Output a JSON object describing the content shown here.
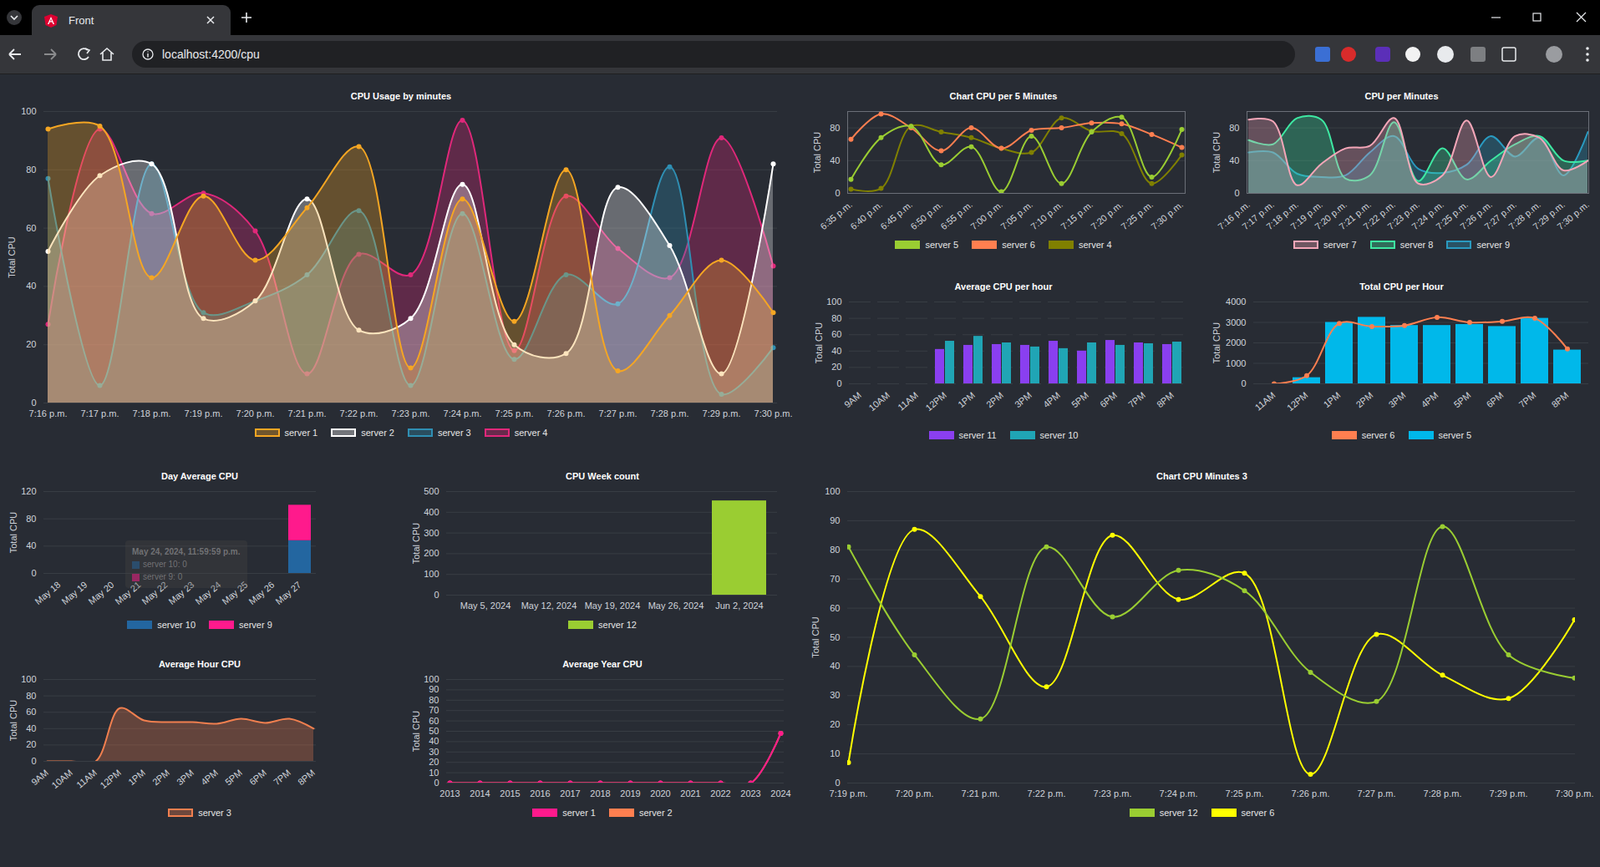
{
  "browser": {
    "tab_title": "Front",
    "url": "localhost:4200/cpu"
  },
  "chart_data": [
    {
      "type": "area",
      "title": "CPU Usage by minutes",
      "y_label": "Total CPU",
      "grid": true,
      "marker": "circle",
      "legend": "bottom",
      "categories": [
        "7:16 p.m.",
        "7:17 p.m.",
        "7:18 p.m.",
        "7:19 p.m.",
        "7:20 p.m.",
        "7:21 p.m.",
        "7:22 p.m.",
        "7:23 p.m.",
        "7:24 p.m.",
        "7:25 p.m.",
        "7:26 p.m.",
        "7:27 p.m.",
        "7:28 p.m.",
        "7:29 p.m.",
        "7:30 p.m."
      ],
      "ylim": [
        0,
        100
      ],
      "yticks": [
        0,
        20,
        40,
        60,
        80,
        100
      ],
      "series": [
        {
          "name": "server 1",
          "color": "#f5a623",
          "values": [
            94,
            95,
            43,
            71,
            49,
            67,
            88,
            12,
            70,
            28,
            80,
            11,
            30,
            49,
            31
          ]
        },
        {
          "name": "server 2",
          "color": "#ffffff",
          "values": [
            52,
            78,
            82,
            29,
            35,
            70,
            25,
            29,
            75,
            20,
            17,
            74,
            54,
            10,
            82
          ]
        },
        {
          "name": "server 3",
          "color": "#2f8fb3",
          "values": [
            77,
            6,
            82,
            31,
            35,
            44,
            66,
            6,
            65,
            15,
            44,
            34,
            81,
            3,
            19
          ]
        },
        {
          "name": "server 4",
          "color": "#e0287a",
          "values": [
            27,
            94,
            65,
            72,
            59,
            10,
            51,
            44,
            97,
            18,
            71,
            53,
            43,
            91,
            47
          ]
        }
      ]
    },
    {
      "type": "line",
      "title": "Chart CPU per 5 Minutes",
      "y_label": "Total CPU",
      "grid": true,
      "marker": "circle",
      "legend": "bottom",
      "categories": [
        "6:35 p.m.",
        "6:40 p.m.",
        "6:45 p.m.",
        "6:50 p.m.",
        "6:55 p.m.",
        "7:00 p.m.",
        "7:05 p.m.",
        "7:10 p.m.",
        "7:15 p.m.",
        "7:20 p.m.",
        "7:25 p.m.",
        "7:30 p.m."
      ],
      "ylim": [
        0,
        100
      ],
      "yticks": [
        0,
        40,
        80
      ],
      "series": [
        {
          "name": "server 5",
          "color": "#9acd32",
          "values": [
            17,
            68,
            82,
            35,
            57,
            2,
            70,
            12,
            75,
            93,
            20,
            78
          ]
        },
        {
          "name": "server 6",
          "color": "#ff7f50",
          "values": [
            66,
            97,
            80,
            52,
            80,
            55,
            77,
            80,
            86,
            85,
            72,
            56
          ]
        },
        {
          "name": "server 4",
          "color": "#808000",
          "values": [
            5,
            6,
            82,
            75,
            68,
            55,
            50,
            92,
            76,
            73,
            12,
            47
          ]
        }
      ]
    },
    {
      "type": "area",
      "title": "CPU per Minutes",
      "y_label": "Total CPU",
      "grid": true,
      "legend": "bottom",
      "categories": [
        "7:16 p.m.",
        "7:17 p.m.",
        "7:18 p.m.",
        "7:19 p.m.",
        "7:20 p.m.",
        "7:21 p.m.",
        "7:22 p.m.",
        "7:23 p.m.",
        "7:24 p.m.",
        "7:25 p.m.",
        "7:26 p.m.",
        "7:27 p.m.",
        "7:28 p.m.",
        "7:29 p.m.",
        "7:30 p.m."
      ],
      "ylim": [
        0,
        100
      ],
      "yticks": [
        0,
        40,
        80
      ],
      "series": [
        {
          "name": "server 7",
          "color": "#f4a6b8",
          "values": [
            90,
            88,
            10,
            36,
            55,
            58,
            92,
            12,
            22,
            89,
            20,
            70,
            68,
            28,
            40
          ]
        },
        {
          "name": "server 8",
          "color": "#3ee8a2",
          "values": [
            65,
            60,
            92,
            90,
            18,
            22,
            87,
            15,
            55,
            17,
            40,
            60,
            70,
            40,
            40
          ]
        },
        {
          "name": "server 9",
          "color": "#2a9ac0",
          "values": [
            50,
            50,
            24,
            20,
            22,
            50,
            70,
            30,
            25,
            35,
            70,
            45,
            68,
            22,
            75
          ]
        }
      ]
    },
    {
      "type": "bar",
      "title": "Average CPU per hour",
      "y_label": "Total CPU",
      "grid": true,
      "stacked": false,
      "legend": "bottom",
      "categories": [
        "9AM",
        "10AM",
        "11AM",
        "12PM",
        "1PM",
        "2PM",
        "3PM",
        "4PM",
        "5PM",
        "6PM",
        "7PM",
        "8PM"
      ],
      "ylim": [
        0,
        100
      ],
      "yticks": [
        0,
        20,
        40,
        60,
        80,
        100
      ],
      "series": [
        {
          "name": "server 11",
          "color": "#8a3ff0",
          "values": [
            0,
            0,
            0,
            42,
            47,
            48,
            47,
            52,
            40,
            53,
            50,
            48
          ]
        },
        {
          "name": "server 10",
          "color": "#20a5b5",
          "values": [
            0,
            0,
            0,
            52,
            58,
            50,
            45,
            43,
            50,
            47,
            49,
            51
          ]
        }
      ]
    },
    {
      "type": "bar",
      "title": "Total CPU per Hour",
      "y_label": "Total CPU",
      "grid": true,
      "legend": "bottom",
      "categories": [
        "11AM",
        "12PM",
        "1PM",
        "2PM",
        "3PM",
        "4PM",
        "5PM",
        "6PM",
        "7PM",
        "8PM"
      ],
      "ylim": [
        0,
        4000
      ],
      "yticks": [
        0,
        1000,
        2000,
        3000,
        4000
      ],
      "series": [
        {
          "name": "server 6",
          "color": "#ff7f50",
          "type": "line",
          "marker": "circle",
          "values": [
            0,
            400,
            2950,
            2800,
            2850,
            3250,
            3000,
            3050,
            3200,
            1700
          ]
        },
        {
          "name": "server 5",
          "color": "#00b8ea",
          "type": "bar",
          "values": [
            0,
            300,
            3000,
            3250,
            2850,
            2850,
            2900,
            2800,
            3200,
            1650
          ]
        }
      ]
    },
    {
      "type": "bar",
      "title": "Day Average CPU",
      "y_label": "Total CPU",
      "grid": true,
      "stacked": true,
      "legend": "bottom",
      "categories": [
        "May 18",
        "May 19",
        "May 20",
        "May 21",
        "May 22",
        "May 23",
        "May 24",
        "May 25",
        "May 26",
        "May 27"
      ],
      "ylim": [
        0,
        120
      ],
      "yticks": [
        0,
        40,
        80,
        120
      ],
      "series": [
        {
          "name": "server 10",
          "color": "#2366a0",
          "values": [
            0,
            0,
            0,
            0,
            0,
            0,
            0,
            0,
            0,
            48
          ]
        },
        {
          "name": "server 9",
          "color": "#ff1a8c",
          "values": [
            0,
            0,
            0,
            0,
            0,
            0,
            0,
            0,
            0,
            52
          ]
        }
      ],
      "tooltip": {
        "title": "May 24, 2024, 11:59:59 p.m.",
        "lines": [
          "server 10: 0",
          "server 9: 0"
        ]
      }
    },
    {
      "type": "bar",
      "title": "CPU Week count",
      "y_label": "Total CPU",
      "grid": true,
      "legend": "bottom",
      "categories": [
        "May 5, 2024",
        "May 12, 2024",
        "May 19, 2024",
        "May 26, 2024",
        "Jun 2, 2024"
      ],
      "ylim": [
        0,
        500
      ],
      "yticks": [
        0,
        100,
        200,
        300,
        400,
        500
      ],
      "series": [
        {
          "name": "server 12",
          "color": "#9acd32",
          "values": [
            0,
            0,
            0,
            0,
            455
          ]
        }
      ]
    },
    {
      "type": "line",
      "title": "Chart CPU Minutes 3",
      "y_label": "Total CPU",
      "grid": true,
      "marker": "circle",
      "legend": "bottom",
      "categories": [
        "7:19 p.m.",
        "7:20 p.m.",
        "7:21 p.m.",
        "7:22 p.m.",
        "7:23 p.m.",
        "7:24 p.m.",
        "7:25 p.m.",
        "7:26 p.m.",
        "7:27 p.m.",
        "7:28 p.m.",
        "7:29 p.m.",
        "7:30 p.m."
      ],
      "ylim": [
        0,
        100
      ],
      "yticks": [
        0,
        10,
        20,
        30,
        40,
        50,
        60,
        70,
        80,
        90,
        100
      ],
      "series": [
        {
          "name": "server 12",
          "color": "#9acd32",
          "values": [
            81,
            44,
            22,
            81,
            57,
            73,
            66,
            38,
            28,
            88,
            44,
            36
          ]
        },
        {
          "name": "server 6",
          "color": "#ffff00",
          "values": [
            7,
            87,
            64,
            33,
            85,
            63,
            72,
            3,
            51,
            37,
            29,
            56
          ]
        }
      ]
    },
    {
      "type": "area",
      "title": "Average Hour CPU",
      "y_label": "Total CPU",
      "grid": true,
      "legend": "bottom",
      "categories": [
        "9AM",
        "10AM",
        "11AM",
        "12PM",
        "1PM",
        "2PM",
        "3PM",
        "4PM",
        "5PM",
        "6PM",
        "7PM",
        "8PM"
      ],
      "ylim": [
        0,
        100
      ],
      "yticks": [
        0,
        20,
        40,
        60,
        80,
        100
      ],
      "series": [
        {
          "name": "server 3",
          "color": "#f07f4f",
          "values": [
            0,
            0,
            0,
            65,
            50,
            48,
            48,
            46,
            52,
            47,
            52,
            40
          ]
        }
      ]
    },
    {
      "type": "line",
      "title": "Average Year CPU",
      "y_label": "Total CPU",
      "grid": true,
      "marker": "circle",
      "legend": "bottom",
      "categories": [
        "2013",
        "2014",
        "2015",
        "2016",
        "2017",
        "2018",
        "2019",
        "2020",
        "2021",
        "2022",
        "2023",
        "2024"
      ],
      "ylim": [
        0,
        100
      ],
      "yticks": [
        0,
        10,
        20,
        30,
        40,
        50,
        60,
        70,
        80,
        90,
        100
      ],
      "series": [
        {
          "name": "server 1",
          "color": "#ff1a8c",
          "values": [
            0,
            0,
            0,
            0,
            0,
            0,
            0,
            0,
            0,
            0,
            0,
            48
          ]
        },
        {
          "name": "server 2",
          "color": "#ff7f50",
          "values": [
            0,
            0,
            0,
            0,
            0,
            0,
            0,
            0,
            0,
            0,
            0,
            48
          ]
        }
      ]
    }
  ]
}
